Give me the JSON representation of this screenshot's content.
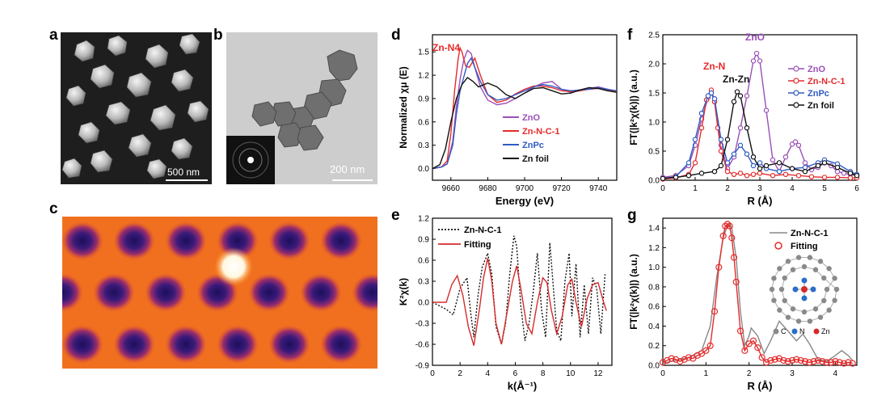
{
  "panel_labels": {
    "a": "a",
    "b": "b",
    "c": "c",
    "d": "d",
    "e": "e",
    "f": "f",
    "g": "g"
  },
  "scale_bars": {
    "a": "500 nm",
    "b": "200 nm"
  },
  "colors": {
    "ZnO": "#9b4fb7",
    "ZnNC": "#e52b2b",
    "ZnPc": "#2f5bc2",
    "Znfoil": "#111111",
    "fit_gray": "#888888"
  },
  "chart_data": [
    {
      "panel": "d",
      "type": "line",
      "xlabel": "Energy (eV)",
      "ylabel": "Normalized χμ (E)",
      "xlim": [
        9650,
        9750
      ],
      "ylim": [
        -0.15,
        1.72
      ],
      "xticks": [
        9660,
        9680,
        9700,
        9720,
        9740
      ],
      "yticks": [
        0.0,
        0.3,
        0.6,
        0.9,
        1.2,
        1.5
      ],
      "annotation": "Zn-N4",
      "legend_position": "right",
      "series": [
        {
          "name": "ZnO",
          "color": "#9b4fb7",
          "x": [
            9650,
            9655,
            9658,
            9661,
            9663,
            9665,
            9667,
            9669,
            9671,
            9673,
            9676,
            9680,
            9685,
            9690,
            9695,
            9700,
            9705,
            9710,
            9715,
            9720,
            9725,
            9730,
            9735,
            9740,
            9745,
            9750
          ],
          "y": [
            0.0,
            0.02,
            0.06,
            0.35,
            0.8,
            1.15,
            1.4,
            1.52,
            1.48,
            1.3,
            1.05,
            0.88,
            0.82,
            0.84,
            0.9,
            0.97,
            1.05,
            1.1,
            1.12,
            1.02,
            0.98,
            1.0,
            1.03,
            1.05,
            1.02,
            0.99
          ]
        },
        {
          "name": "Zn-N-C-1",
          "color": "#e52b2b",
          "x": [
            9650,
            9655,
            9658,
            9660,
            9662,
            9664,
            9665,
            9666,
            9668,
            9670,
            9673,
            9676,
            9680,
            9685,
            9690,
            9695,
            9700,
            9705,
            9710,
            9715,
            9720,
            9725,
            9730,
            9735,
            9740,
            9745,
            9750
          ],
          "y": [
            0.0,
            0.02,
            0.1,
            0.45,
            1.0,
            1.42,
            1.55,
            1.5,
            1.32,
            1.3,
            1.42,
            1.2,
            0.95,
            0.85,
            0.88,
            0.96,
            1.02,
            1.06,
            1.06,
            1.04,
            1.0,
            0.99,
            1.0,
            1.02,
            1.03,
            1.01,
            0.99
          ]
        },
        {
          "name": "ZnPc",
          "color": "#2f5bc2",
          "x": [
            9650,
            9655,
            9658,
            9661,
            9663,
            9665,
            9667,
            9669,
            9671,
            9673,
            9676,
            9680,
            9685,
            9690,
            9695,
            9700,
            9705,
            9710,
            9715,
            9720,
            9725,
            9730,
            9735,
            9740,
            9745,
            9750
          ],
          "y": [
            0.0,
            0.02,
            0.06,
            0.3,
            0.7,
            1.0,
            1.18,
            1.35,
            1.42,
            1.3,
            1.12,
            0.95,
            0.88,
            0.9,
            0.95,
            1.0,
            1.05,
            1.08,
            1.06,
            1.02,
            1.0,
            1.01,
            1.02,
            1.04,
            1.02,
            1.0
          ]
        },
        {
          "name": "Zn foil",
          "color": "#111111",
          "x": [
            9650,
            9654,
            9657,
            9660,
            9663,
            9666,
            9669,
            9672,
            9675,
            9680,
            9685,
            9690,
            9695,
            9700,
            9705,
            9710,
            9715,
            9720,
            9725,
            9730,
            9735,
            9740,
            9745,
            9750
          ],
          "y": [
            0.0,
            0.05,
            0.25,
            0.6,
            0.9,
            1.08,
            1.17,
            1.12,
            1.05,
            1.1,
            1.05,
            0.95,
            0.9,
            0.97,
            1.03,
            1.04,
            1.0,
            0.96,
            0.97,
            1.01,
            1.04,
            1.03,
            1.0,
            0.98
          ]
        }
      ]
    },
    {
      "panel": "e",
      "type": "line",
      "xlabel": "k(Å⁻¹)",
      "ylabel": "K²χ(k)",
      "xlim": [
        0,
        13
      ],
      "ylim": [
        -0.9,
        1.2
      ],
      "xticks": [
        0,
        2,
        4,
        6,
        8,
        10,
        12
      ],
      "yticks": [
        -0.9,
        -0.6,
        -0.3,
        0.0,
        0.3,
        0.6,
        0.9,
        1.2
      ],
      "legend_position": "top-left",
      "series": [
        {
          "name": "Zn-N-C-1",
          "color": "#111111",
          "dashed": true,
          "x": [
            0,
            1.0,
            1.5,
            2.0,
            2.5,
            2.8,
            3.0,
            3.3,
            3.6,
            4.0,
            4.3,
            4.6,
            5.0,
            5.3,
            5.6,
            5.9,
            6.1,
            6.4,
            6.7,
            7.0,
            7.3,
            7.6,
            7.9,
            8.2,
            8.5,
            8.8,
            9.0,
            9.3,
            9.6,
            9.9,
            10.1,
            10.4,
            10.7,
            11.0,
            11.3,
            11.6,
            11.9,
            12.2,
            12.5
          ],
          "y": [
            0,
            -0.1,
            -0.18,
            0.2,
            0.35,
            -0.2,
            -0.5,
            0.1,
            0.5,
            0.7,
            0.4,
            -0.35,
            -0.6,
            -0.3,
            0.4,
            0.95,
            0.8,
            -0.05,
            -0.55,
            -0.3,
            0.15,
            0.7,
            -0.1,
            -0.5,
            0.85,
            0.1,
            -0.4,
            -0.55,
            0.3,
            0.7,
            -0.2,
            0.55,
            -0.5,
            0.25,
            -0.45,
            0.35,
            0.2,
            -0.45,
            0.4
          ]
        },
        {
          "name": "Fitting",
          "color": "#d62b2b",
          "dashed": false,
          "x": [
            0,
            1.0,
            1.4,
            1.8,
            2.2,
            2.6,
            3.0,
            3.4,
            3.7,
            4.0,
            4.3,
            4.6,
            5.0,
            5.4,
            5.8,
            6.1,
            6.4,
            6.8,
            7.2,
            7.6,
            8.0,
            8.3,
            8.6,
            9.0,
            9.4,
            9.8,
            10.1,
            10.4,
            10.8,
            11.2,
            11.6,
            12.0,
            12.4,
            12.6
          ],
          "y": [
            0,
            0.0,
            0.25,
            0.38,
            0.1,
            -0.35,
            -0.62,
            -0.1,
            0.35,
            0.63,
            0.3,
            -0.3,
            -0.6,
            -0.15,
            0.3,
            0.52,
            0.2,
            -0.3,
            -0.45,
            0.0,
            0.35,
            0.28,
            -0.1,
            -0.45,
            -0.2,
            0.25,
            0.33,
            0.0,
            -0.35,
            0.05,
            0.25,
            0.28,
            0.0,
            -0.12
          ]
        }
      ]
    },
    {
      "panel": "f",
      "type": "line",
      "xlabel": "R  (Å)",
      "ylabel": "FT(|k²χ(k)|) (a.u.)",
      "xlim": [
        0,
        6
      ],
      "ylim": [
        0,
        2.5
      ],
      "xticks": [
        0,
        1,
        2,
        3,
        4,
        5,
        6
      ],
      "yticks": [
        0.0,
        0.5,
        1.0,
        1.5,
        2.0,
        2.5
      ],
      "annotations": [
        "Zn-N",
        "Zn-Zn",
        "ZnO"
      ],
      "legend_position": "right",
      "series": [
        {
          "name": "ZnO",
          "color": "#9b4fb7",
          "x": [
            0,
            0.4,
            0.8,
            1.0,
            1.2,
            1.4,
            1.5,
            1.6,
            1.8,
            2.0,
            2.2,
            2.4,
            2.6,
            2.8,
            2.9,
            3.0,
            3.2,
            3.4,
            3.6,
            3.8,
            4.0,
            4.1,
            4.2,
            4.4,
            4.6,
            4.8,
            5.0,
            5.2,
            5.4,
            5.6,
            5.8,
            6.0
          ],
          "y": [
            0.05,
            0.08,
            0.25,
            0.6,
            1.05,
            1.42,
            1.5,
            1.35,
            0.6,
            0.2,
            0.4,
            0.9,
            1.45,
            2.05,
            2.18,
            2.05,
            1.2,
            0.35,
            0.15,
            0.4,
            0.62,
            0.66,
            0.6,
            0.3,
            0.18,
            0.22,
            0.3,
            0.25,
            0.15,
            0.12,
            0.1,
            0.08
          ]
        },
        {
          "name": "Zn-N-C-1",
          "color": "#e52b2b",
          "x": [
            0,
            0.4,
            0.8,
            1.0,
            1.2,
            1.35,
            1.5,
            1.6,
            1.7,
            1.8,
            2.0,
            2.2,
            2.4,
            2.6,
            2.8,
            3.0,
            3.4,
            3.8,
            4.2,
            4.6,
            5.0,
            5.4,
            5.8,
            6.0
          ],
          "y": [
            0.02,
            0.04,
            0.1,
            0.3,
            0.9,
            1.38,
            1.55,
            1.35,
            0.9,
            0.5,
            0.15,
            0.1,
            0.12,
            0.08,
            0.1,
            0.12,
            0.08,
            0.1,
            0.08,
            0.06,
            0.05,
            0.05,
            0.04,
            0.04
          ]
        },
        {
          "name": "ZnPc",
          "color": "#2f5bc2",
          "x": [
            0,
            0.4,
            0.8,
            1.0,
            1.2,
            1.4,
            1.5,
            1.6,
            1.8,
            2.0,
            2.2,
            2.4,
            2.6,
            2.8,
            3.0,
            3.2,
            3.6,
            4.0,
            4.4,
            4.8,
            5.0,
            5.4,
            5.8,
            6.0
          ],
          "y": [
            0.03,
            0.06,
            0.3,
            0.7,
            1.15,
            1.45,
            1.5,
            1.4,
            0.7,
            0.3,
            0.45,
            0.6,
            0.45,
            0.25,
            0.3,
            0.2,
            0.15,
            0.2,
            0.22,
            0.3,
            0.35,
            0.28,
            0.15,
            0.1
          ]
        },
        {
          "name": "Zn foil",
          "color": "#111111",
          "x": [
            0,
            0.4,
            0.8,
            1.2,
            1.6,
            1.8,
            2.0,
            2.2,
            2.3,
            2.4,
            2.6,
            2.8,
            3.0,
            3.2,
            3.6,
            4.0,
            4.4,
            4.8,
            5.0,
            5.4,
            5.8,
            6.0
          ],
          "y": [
            0.03,
            0.05,
            0.08,
            0.12,
            0.15,
            0.25,
            0.7,
            1.35,
            1.52,
            1.45,
            0.9,
            0.4,
            0.2,
            0.25,
            0.3,
            0.2,
            0.15,
            0.25,
            0.3,
            0.22,
            0.12,
            0.08
          ]
        }
      ],
      "legend": [
        "ZnO",
        "Zn-N-C-1",
        "ZnPc",
        "Zn foil"
      ]
    },
    {
      "panel": "g",
      "type": "line",
      "xlabel": "R  (Å)",
      "ylabel": "FT(|k²χ(k)|) (a.u.)",
      "xlim": [
        0,
        4.5
      ],
      "ylim": [
        0,
        1.5
      ],
      "xticks": [
        0,
        1,
        2,
        3,
        4
      ],
      "yticks": [
        0.0,
        0.2,
        0.4,
        0.6,
        0.8,
        1.0,
        1.2,
        1.4
      ],
      "legend_position": "top-right",
      "inset_legend": {
        "C": "C",
        "N": "N",
        "Zn": "Zn"
      },
      "series": [
        {
          "name": "Zn-N-C-1",
          "color": "#888888",
          "marker": false,
          "x": [
            0,
            0.3,
            0.6,
            0.9,
            1.1,
            1.25,
            1.4,
            1.5,
            1.55,
            1.6,
            1.7,
            1.8,
            1.9,
            2.0,
            2.05,
            2.2,
            2.35,
            2.5,
            2.7,
            2.9,
            3.1,
            3.25,
            3.4,
            3.6,
            3.8,
            4.0,
            4.15,
            4.3,
            4.4
          ],
          "y": [
            0.02,
            0.05,
            0.08,
            0.15,
            0.4,
            0.9,
            1.3,
            1.43,
            1.44,
            1.4,
            1.1,
            0.55,
            0.2,
            0.3,
            0.38,
            0.3,
            0.12,
            0.25,
            0.45,
            0.35,
            0.25,
            0.32,
            0.22,
            0.06,
            0.04,
            0.1,
            0.15,
            0.1,
            0.05
          ]
        },
        {
          "name": "Fitting",
          "color": "#e52b2b",
          "marker": true,
          "x": [
            0,
            0.1,
            0.2,
            0.3,
            0.4,
            0.5,
            0.6,
            0.7,
            0.8,
            0.9,
            1.0,
            1.1,
            1.2,
            1.3,
            1.4,
            1.45,
            1.5,
            1.55,
            1.6,
            1.65,
            1.7,
            1.8,
            1.9,
            2.0,
            2.1,
            2.2,
            2.3,
            2.4,
            2.5,
            2.6,
            2.7,
            2.8,
            2.9,
            3.0,
            3.1,
            3.2,
            3.3,
            3.4,
            3.5,
            3.6,
            3.7,
            3.8,
            3.9,
            4.0,
            4.1,
            4.2,
            4.3,
            4.4
          ],
          "y": [
            0.03,
            0.05,
            0.07,
            0.06,
            0.04,
            0.06,
            0.08,
            0.07,
            0.1,
            0.12,
            0.15,
            0.2,
            0.55,
            1.0,
            1.32,
            1.42,
            1.44,
            1.42,
            1.3,
            1.1,
            0.85,
            0.35,
            0.15,
            0.22,
            0.25,
            0.18,
            0.08,
            0.03,
            0.05,
            0.06,
            0.07,
            0.05,
            0.04,
            0.05,
            0.06,
            0.05,
            0.04,
            0.03,
            0.04,
            0.05,
            0.04,
            0.03,
            0.03,
            0.04,
            0.03,
            0.02,
            0.03,
            0.02
          ]
        }
      ]
    }
  ]
}
